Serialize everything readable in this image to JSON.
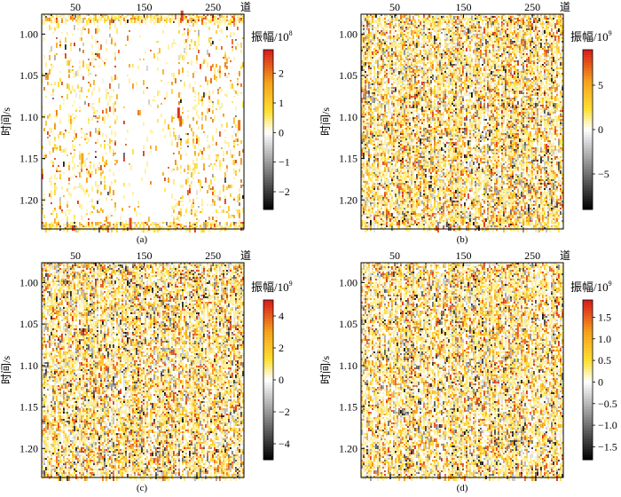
{
  "chart_data": [
    {
      "type": "heatmap",
      "panel_label": "(a)",
      "x_ticks": [
        "50",
        "150",
        "250"
      ],
      "x_unit": "道",
      "y_ticks": [
        "1.00",
        "1.05",
        "1.10",
        "1.15",
        "1.20"
      ],
      "ylabel": "时间/s",
      "colorbar_title": "振幅/10",
      "colorbar_exp": "8",
      "colorbar_ticks": [
        "2",
        "1",
        "0",
        "−1",
        "−2"
      ],
      "colorbar_range": [
        -2.6,
        2.8
      ],
      "tick_values": [
        2,
        1,
        0,
        -1,
        -2
      ],
      "density": 0.12,
      "seed": 11
    },
    {
      "type": "heatmap",
      "panel_label": "(b)",
      "x_ticks": [
        "50",
        "150",
        "250"
      ],
      "x_unit": "道",
      "y_ticks": [
        "1.00",
        "1.05",
        "1.10",
        "1.15",
        "1.20"
      ],
      "ylabel": "时间/s",
      "colorbar_title": "振幅/10",
      "colorbar_exp": "9",
      "colorbar_ticks": [
        "5",
        "0",
        "−5"
      ],
      "colorbar_range": [
        -9,
        9
      ],
      "tick_values": [
        5,
        0,
        -5
      ],
      "density": 0.75,
      "seed": 23
    },
    {
      "type": "heatmap",
      "panel_label": "(c)",
      "x_ticks": [
        "50",
        "150",
        "250"
      ],
      "x_unit": "道",
      "y_ticks": [
        "1.00",
        "1.05",
        "1.10",
        "1.15",
        "1.20"
      ],
      "ylabel": "时间/s",
      "colorbar_title": "振幅/10",
      "colorbar_exp": "9",
      "colorbar_ticks": [
        "4",
        "2",
        "0",
        "−2",
        "−4"
      ],
      "colorbar_range": [
        -5,
        5
      ],
      "tick_values": [
        4,
        2,
        0,
        -2,
        -4
      ],
      "density": 0.72,
      "seed": 37
    },
    {
      "type": "heatmap",
      "panel_label": "(d)",
      "x_ticks": [
        "50",
        "150",
        "250"
      ],
      "x_unit": "道",
      "y_ticks": [
        "1.00",
        "1.05",
        "1.10",
        "1.15",
        "1.20"
      ],
      "ylabel": "时间/s",
      "colorbar_title": "振幅/10",
      "colorbar_exp": "9",
      "colorbar_ticks": [
        "1.5",
        "1.0",
        "0.5",
        "0",
        "−0.5",
        "−1.0",
        "−1.5"
      ],
      "colorbar_range": [
        -1.8,
        1.9
      ],
      "tick_values": [
        1.5,
        1.0,
        0.5,
        0,
        -0.5,
        -1.0,
        -1.5
      ],
      "density": 0.72,
      "seed": 53
    }
  ],
  "colors": {
    "red": "#d7191c",
    "orange": "#f5a21b",
    "yellow": "#ffe033",
    "white": "#ffffff",
    "gray": "#8c8c8c",
    "black": "#000000"
  }
}
